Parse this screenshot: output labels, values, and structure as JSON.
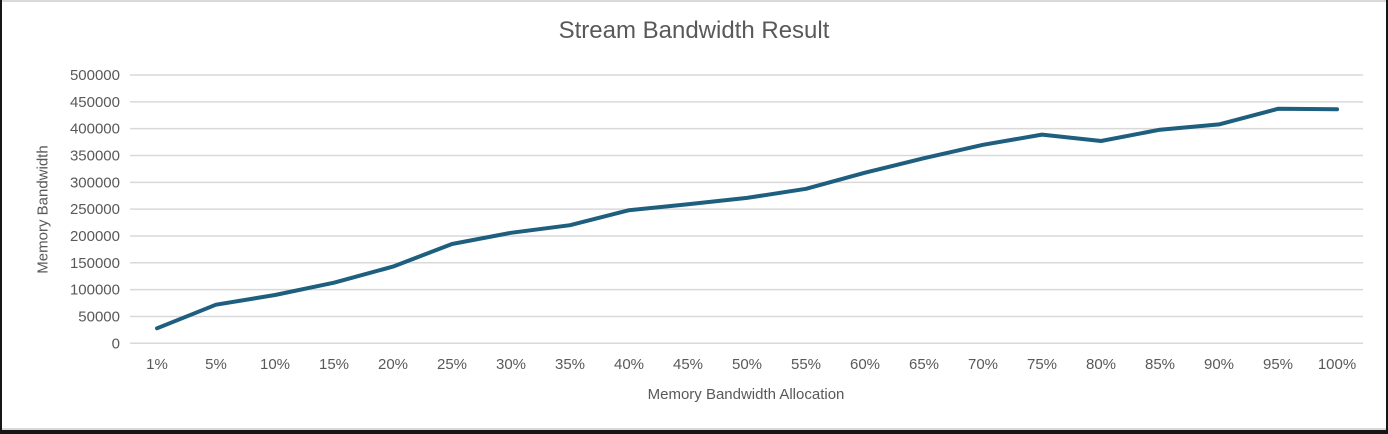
{
  "window": {
    "background": "#161616",
    "chart_background": "#ffffff"
  },
  "colors": {
    "series_line": "#1E5E7E",
    "gridline": "#D9D9D9",
    "text": "#595959"
  },
  "chart_data": {
    "type": "line",
    "title": "Stream Bandwidth Result",
    "xlabel": "Memory Bandwidth Allocation",
    "ylabel": "Memory Bandwidth",
    "categories": [
      "1%",
      "5%",
      "10%",
      "15%",
      "20%",
      "25%",
      "30%",
      "35%",
      "40%",
      "45%",
      "50%",
      "55%",
      "60%",
      "65%",
      "70%",
      "75%",
      "80%",
      "85%",
      "90%",
      "95%",
      "100%"
    ],
    "values": [
      28000,
      72000,
      90000,
      113000,
      143000,
      185000,
      206000,
      220000,
      248000,
      259000,
      271000,
      288000,
      318000,
      345000,
      370000,
      389000,
      377000,
      398000,
      408000,
      437000,
      436000
    ],
    "series": [
      {
        "name": "Memory Bandwidth",
        "values": [
          28000,
          72000,
          90000,
          113000,
          143000,
          185000,
          206000,
          220000,
          248000,
          259000,
          271000,
          288000,
          318000,
          345000,
          370000,
          389000,
          377000,
          398000,
          408000,
          437000,
          436000
        ]
      }
    ],
    "ylim": [
      0,
      500000
    ],
    "y_tick_step": 50000,
    "y_tick_labels": [
      "0",
      "50000",
      "100000",
      "150000",
      "200000",
      "250000",
      "300000",
      "350000",
      "400000",
      "450000",
      "500000"
    ],
    "grid": "horizontal-only",
    "legend": "none",
    "line_color": "#1E5E7E",
    "line_width": 4
  }
}
